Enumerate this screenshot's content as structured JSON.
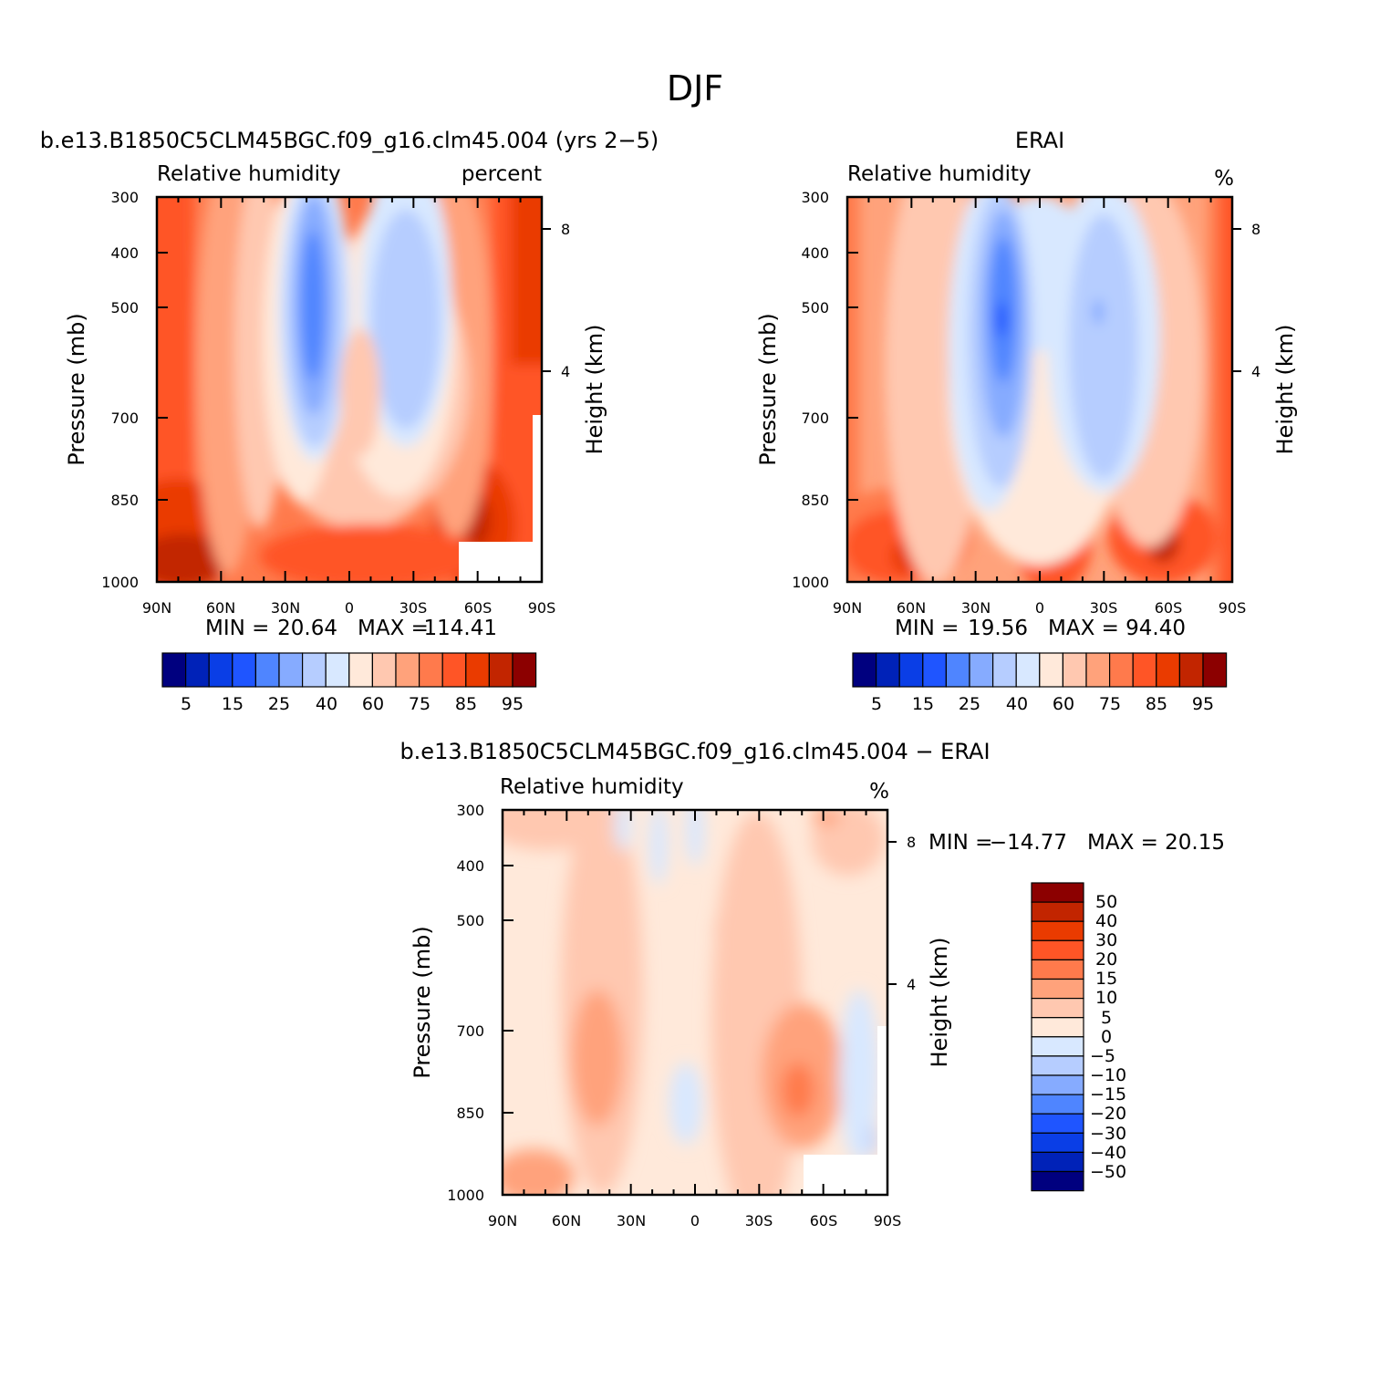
{
  "figure": {
    "title": "DJF"
  },
  "chart_data": [
    {
      "type": "heatmap",
      "title": "b.e13.B1850C5CLM45BGC.f09_g16.clm45.004 (yrs 2−5)",
      "variable": "Relative humidity",
      "units": "percent",
      "ylabel": "Pressure (mb)",
      "y2label": "Height (km)",
      "x_ticks": [
        "90N",
        "60N",
        "30N",
        "0",
        "30S",
        "60S",
        "90S"
      ],
      "y_ticks": [
        "300",
        "400",
        "500",
        "700",
        "850",
        "1000"
      ],
      "y2_ticks": [
        "8",
        "4"
      ],
      "min_label": "MIN =",
      "min": "20.64",
      "max_label": "MAX =",
      "max": "114.41",
      "levels": [
        "5",
        "15",
        "25",
        "40",
        "60",
        "75",
        "85",
        "95"
      ],
      "colors": [
        "#00007f",
        "#0022b8",
        "#0a3ee6",
        "#1f55ff",
        "#4f85ff",
        "#86abff",
        "#b6cdff",
        "#d8e8ff",
        "#ffe9da",
        "#ffc8b0",
        "#ffa27b",
        "#ff7a4c",
        "#ff5526",
        "#ea3b00",
        "#c22500",
        "#8c0000"
      ]
    },
    {
      "type": "heatmap",
      "title": "ERAI",
      "variable": "Relative humidity",
      "units": "%",
      "ylabel": "Pressure (mb)",
      "y2label": "Height (km)",
      "x_ticks": [
        "90N",
        "60N",
        "30N",
        "0",
        "30S",
        "60S",
        "90S"
      ],
      "y_ticks": [
        "300",
        "400",
        "500",
        "700",
        "850",
        "1000"
      ],
      "y2_ticks": [
        "8",
        "4"
      ],
      "min_label": "MIN =",
      "min": "19.56",
      "max_label": "MAX =",
      "max": "94.40",
      "levels": [
        "5",
        "15",
        "25",
        "40",
        "60",
        "75",
        "85",
        "95"
      ],
      "colors": [
        "#00007f",
        "#0022b8",
        "#0a3ee6",
        "#1f55ff",
        "#4f85ff",
        "#86abff",
        "#b6cdff",
        "#d8e8ff",
        "#ffe9da",
        "#ffc8b0",
        "#ffa27b",
        "#ff7a4c",
        "#ff5526",
        "#ea3b00",
        "#c22500",
        "#8c0000"
      ]
    },
    {
      "type": "heatmap",
      "title": "b.e13.B1850C5CLM45BGC.f09_g16.clm45.004 − ERAI",
      "variable": "Relative humidity",
      "units": "%",
      "ylabel": "Pressure (mb)",
      "y2label": "Height (km)",
      "x_ticks": [
        "90N",
        "60N",
        "30N",
        "0",
        "30S",
        "60S",
        "90S"
      ],
      "y_ticks": [
        "300",
        "400",
        "500",
        "700",
        "850",
        "1000"
      ],
      "y2_ticks": [
        "8",
        "4"
      ],
      "min_label": "MIN =",
      "min": "−14.77",
      "max_label": "MAX =",
      "max": "20.15",
      "levels": [
        "50",
        "40",
        "30",
        "20",
        "15",
        "10",
        "5",
        "0",
        "−5",
        "−10",
        "−15",
        "−20",
        "−30",
        "−40",
        "−50"
      ],
      "colors": [
        "#8c0000",
        "#c22500",
        "#ea3b00",
        "#ff5526",
        "#ff7a4c",
        "#ffa27b",
        "#ffc8b0",
        "#ffe9da",
        "#d8e8ff",
        "#b6cdff",
        "#86abff",
        "#4f85ff",
        "#1f55ff",
        "#0a3ee6",
        "#0022b8",
        "#00007f"
      ]
    }
  ]
}
